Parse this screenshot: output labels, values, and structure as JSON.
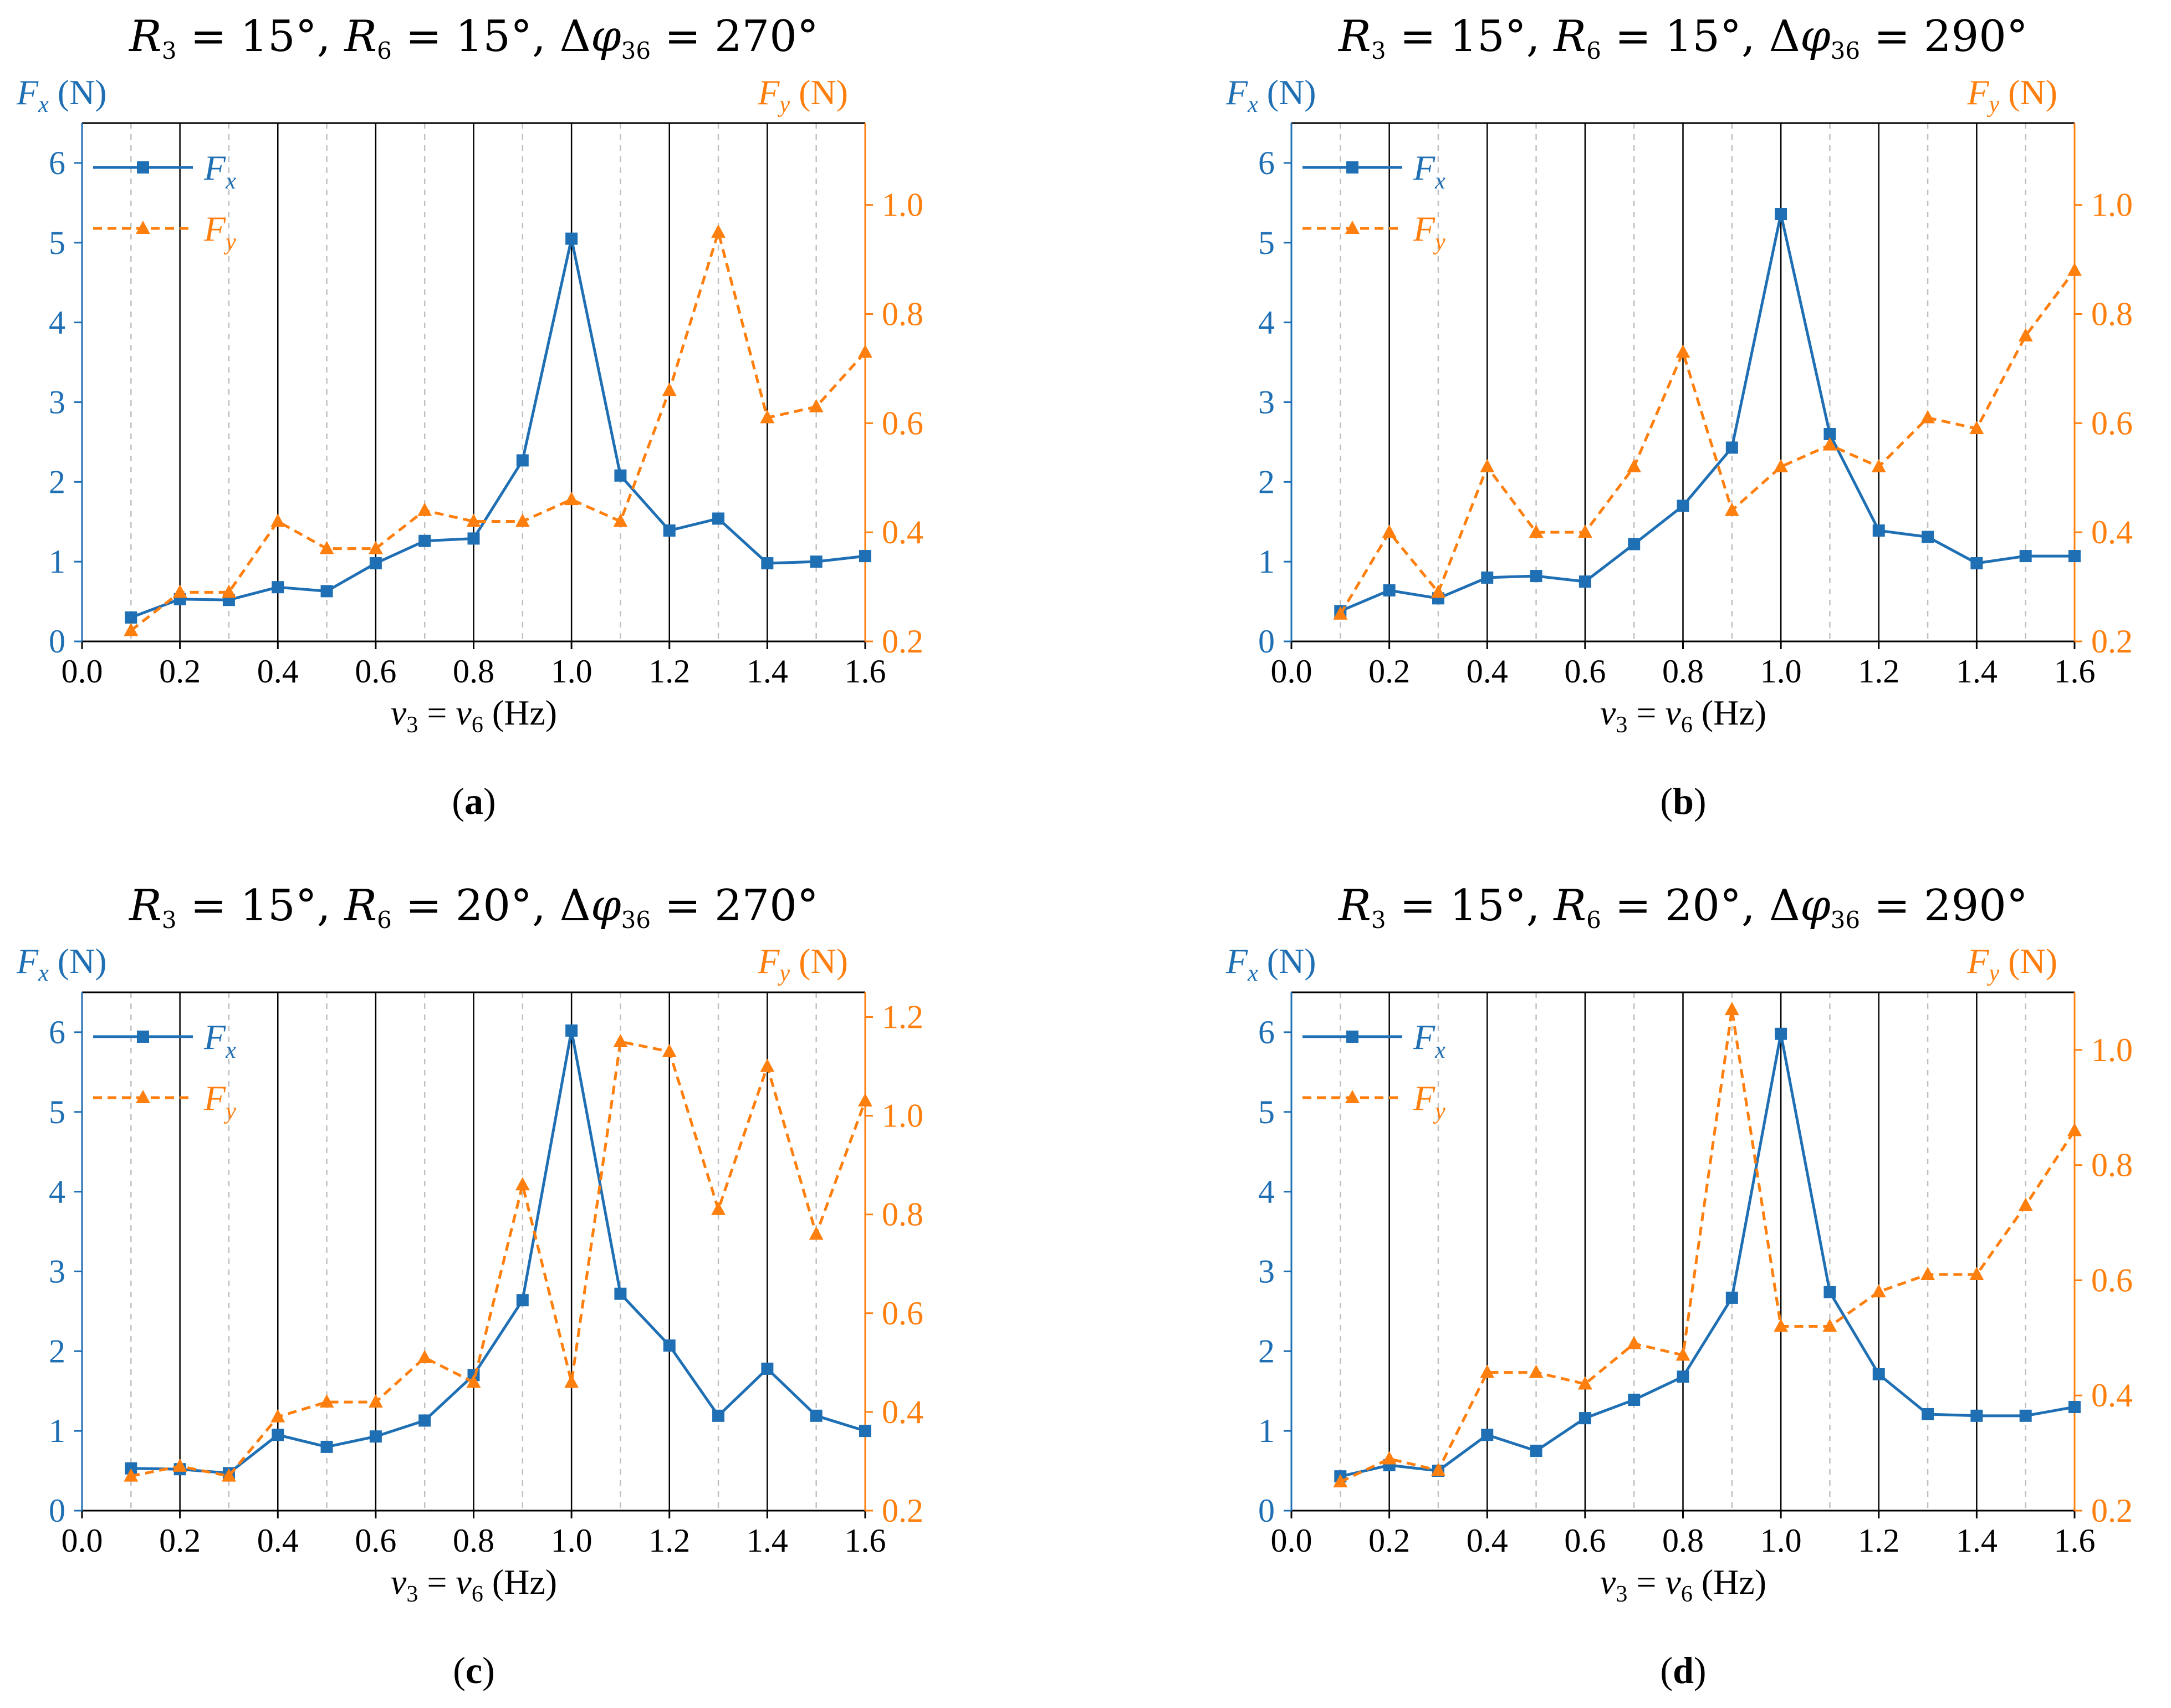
{
  "colors": {
    "fx": "#1f6fb4",
    "fy": "#ff7f0e",
    "axis": "#000000",
    "grid": "#000000",
    "minor_grid": "#c0c0c0"
  },
  "chart_data": [
    {
      "id": "a",
      "panel_label": "a",
      "title_parts": {
        "r3": "15°",
        "r6": "15°",
        "dphi": "270°"
      },
      "type": "line",
      "x": [
        0.1,
        0.2,
        0.3,
        0.4,
        0.5,
        0.6,
        0.7,
        0.8,
        0.9,
        1.0,
        1.1,
        1.2,
        1.3,
        1.4,
        1.5,
        1.6
      ],
      "xlim": [
        0.0,
        1.6
      ],
      "x_ticks": [
        "0.0",
        "0.2",
        "0.4",
        "0.6",
        "0.8",
        "1.0",
        "1.2",
        "1.4",
        "1.6"
      ],
      "y_left": {
        "lim": [
          0,
          6.5
        ],
        "ticks": [
          "0",
          "1",
          "2",
          "3",
          "4",
          "5",
          "6"
        ]
      },
      "y_right": {
        "lim": [
          0.2,
          1.15
        ],
        "ticks": [
          "0.2",
          "0.4",
          "0.6",
          "0.8",
          "1.0"
        ]
      },
      "series": [
        {
          "name": "Fx",
          "axis": "left",
          "marker": "square",
          "style": "solid",
          "values": [
            0.3,
            0.53,
            0.52,
            0.68,
            0.63,
            0.98,
            1.26,
            1.29,
            2.27,
            5.05,
            2.08,
            1.39,
            1.54,
            0.98,
            1.0,
            1.07
          ]
        },
        {
          "name": "Fy",
          "axis": "right",
          "marker": "triangle",
          "style": "dashed",
          "values": [
            0.22,
            0.29,
            0.29,
            0.42,
            0.37,
            0.37,
            0.44,
            0.42,
            0.42,
            0.46,
            0.42,
            0.66,
            0.95,
            0.61,
            0.63,
            0.73
          ]
        }
      ]
    },
    {
      "id": "b",
      "panel_label": "b",
      "title_parts": {
        "r3": "15°",
        "r6": "15°",
        "dphi": "290°"
      },
      "type": "line",
      "x": [
        0.1,
        0.2,
        0.3,
        0.4,
        0.5,
        0.6,
        0.7,
        0.8,
        0.9,
        1.0,
        1.1,
        1.2,
        1.3,
        1.4,
        1.5,
        1.6
      ],
      "xlim": [
        0.0,
        1.6
      ],
      "x_ticks": [
        "0.0",
        "0.2",
        "0.4",
        "0.6",
        "0.8",
        "1.0",
        "1.2",
        "1.4",
        "1.6"
      ],
      "y_left": {
        "lim": [
          0,
          6.5
        ],
        "ticks": [
          "0",
          "1",
          "2",
          "3",
          "4",
          "5",
          "6"
        ]
      },
      "y_right": {
        "lim": [
          0.2,
          1.15
        ],
        "ticks": [
          "0.2",
          "0.4",
          "0.6",
          "0.8",
          "1.0"
        ]
      },
      "series": [
        {
          "name": "Fx",
          "axis": "left",
          "marker": "square",
          "style": "solid",
          "values": [
            0.38,
            0.64,
            0.54,
            0.8,
            0.82,
            0.75,
            1.22,
            1.7,
            2.43,
            5.36,
            2.6,
            1.39,
            1.31,
            0.98,
            1.07,
            1.07
          ]
        },
        {
          "name": "Fy",
          "axis": "right",
          "marker": "triangle",
          "style": "dashed",
          "values": [
            0.25,
            0.4,
            0.29,
            0.52,
            0.4,
            0.4,
            0.52,
            0.73,
            0.44,
            0.52,
            0.56,
            0.52,
            0.61,
            0.59,
            0.76,
            0.88
          ]
        }
      ]
    },
    {
      "id": "c",
      "panel_label": "c",
      "title_parts": {
        "r3": "15°",
        "r6": "20°",
        "dphi": "270°"
      },
      "type": "line",
      "x": [
        0.1,
        0.2,
        0.3,
        0.4,
        0.5,
        0.6,
        0.7,
        0.8,
        0.9,
        1.0,
        1.1,
        1.2,
        1.3,
        1.4,
        1.5,
        1.6
      ],
      "xlim": [
        0.0,
        1.6
      ],
      "x_ticks": [
        "0.0",
        "0.2",
        "0.4",
        "0.6",
        "0.8",
        "1.0",
        "1.2",
        "1.4",
        "1.6"
      ],
      "y_left": {
        "lim": [
          0,
          6.5
        ],
        "ticks": [
          "0",
          "1",
          "2",
          "3",
          "4",
          "5",
          "6"
        ]
      },
      "y_right": {
        "lim": [
          0.2,
          1.25
        ],
        "ticks": [
          "0.2",
          "0.4",
          "0.6",
          "0.8",
          "1.0",
          "1.2"
        ]
      },
      "series": [
        {
          "name": "Fx",
          "axis": "left",
          "marker": "square",
          "style": "solid",
          "values": [
            0.53,
            0.52,
            0.47,
            0.95,
            0.8,
            0.93,
            1.13,
            1.7,
            2.64,
            6.02,
            2.72,
            2.07,
            1.19,
            1.78,
            1.19,
            1.0
          ]
        },
        {
          "name": "Fy",
          "axis": "right",
          "marker": "triangle",
          "style": "dashed",
          "values": [
            0.27,
            0.29,
            0.27,
            0.39,
            0.42,
            0.42,
            0.51,
            0.46,
            0.86,
            0.46,
            1.15,
            1.13,
            0.81,
            1.1,
            0.76,
            1.03
          ]
        }
      ]
    },
    {
      "id": "d",
      "panel_label": "d",
      "title_parts": {
        "r3": "15°",
        "r6": "20°",
        "dphi": "290°"
      },
      "type": "line",
      "x": [
        0.1,
        0.2,
        0.3,
        0.4,
        0.5,
        0.6,
        0.7,
        0.8,
        0.9,
        1.0,
        1.1,
        1.2,
        1.3,
        1.4,
        1.5,
        1.6
      ],
      "xlim": [
        0.0,
        1.6
      ],
      "x_ticks": [
        "0.0",
        "0.2",
        "0.4",
        "0.6",
        "0.8",
        "1.0",
        "1.2",
        "1.4",
        "1.6"
      ],
      "y_left": {
        "lim": [
          0,
          6.5
        ],
        "ticks": [
          "0",
          "1",
          "2",
          "3",
          "4",
          "5",
          "6"
        ]
      },
      "y_right": {
        "lim": [
          0.2,
          1.1
        ],
        "ticks": [
          "0.2",
          "0.4",
          "0.6",
          "0.8",
          "1.0"
        ]
      },
      "series": [
        {
          "name": "Fx",
          "axis": "left",
          "marker": "square",
          "style": "solid",
          "values": [
            0.43,
            0.57,
            0.5,
            0.95,
            0.75,
            1.16,
            1.39,
            1.68,
            2.67,
            5.98,
            2.74,
            1.71,
            1.21,
            1.19,
            1.19,
            1.3
          ]
        },
        {
          "name": "Fy",
          "axis": "right",
          "marker": "triangle",
          "style": "dashed",
          "values": [
            0.25,
            0.29,
            0.27,
            0.44,
            0.44,
            0.42,
            0.49,
            0.47,
            1.07,
            0.52,
            0.52,
            0.58,
            0.61,
            0.61,
            0.73,
            0.86
          ]
        }
      ]
    }
  ]
}
